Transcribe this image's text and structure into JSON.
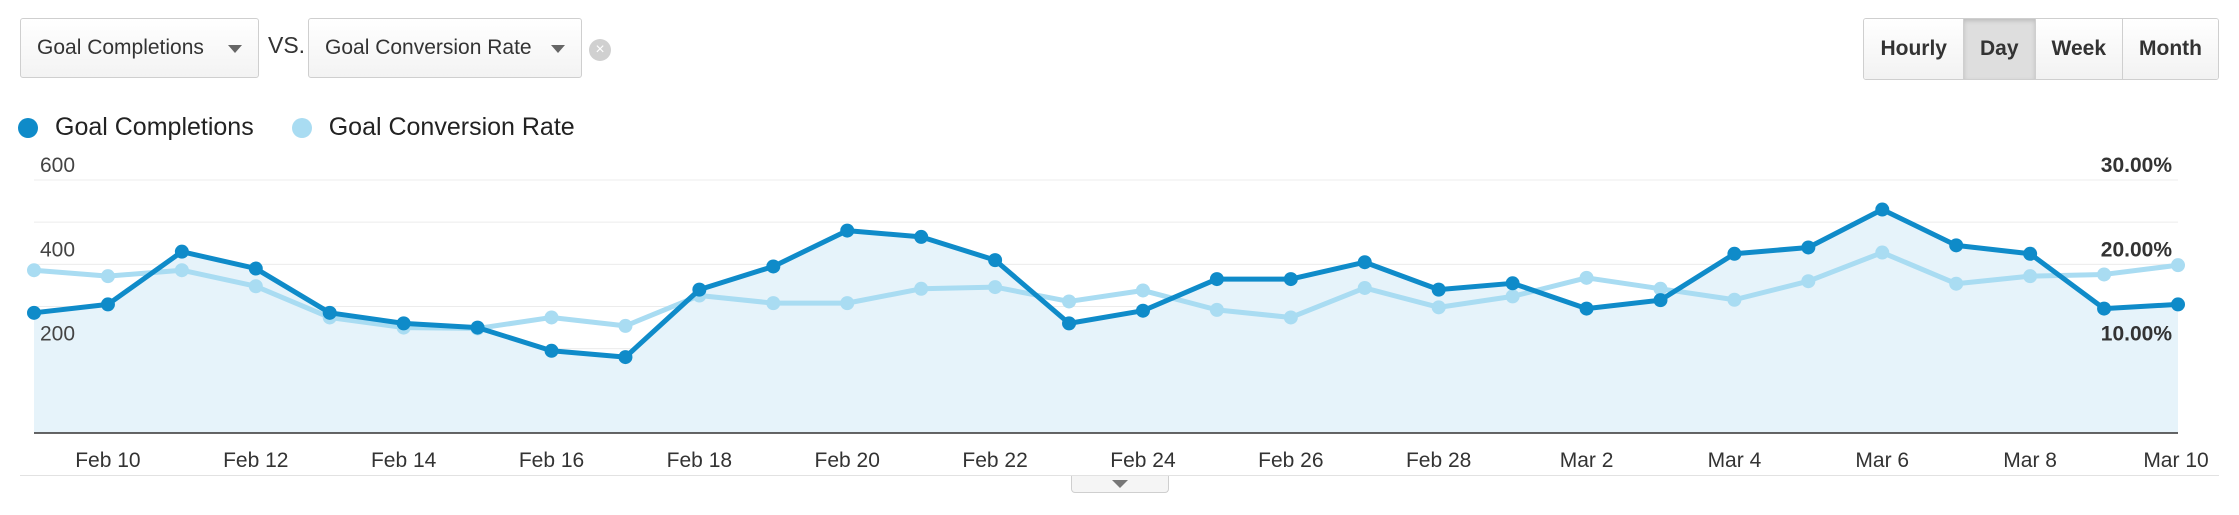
{
  "controls": {
    "primary_metric": "Goal Completions",
    "vs_label": "VS.",
    "secondary_metric": "Goal Conversion Rate",
    "remove_icon": "close-circle-icon",
    "periods": [
      "Hourly",
      "Day",
      "Week",
      "Month"
    ],
    "active_period": "Day"
  },
  "colors": {
    "primary": "#0f8bc9",
    "secondary": "#a9dcf2",
    "area": "#e6f3fa"
  },
  "chart_data": {
    "type": "line",
    "x": [
      "Feb 9",
      "Feb 10",
      "Feb 11",
      "Feb 12",
      "Feb 13",
      "Feb 14",
      "Feb 15",
      "Feb 16",
      "Feb 17",
      "Feb 18",
      "Feb 19",
      "Feb 20",
      "Feb 21",
      "Feb 22",
      "Feb 23",
      "Feb 24",
      "Feb 25",
      "Feb 26",
      "Feb 27",
      "Feb 28",
      "Mar 1",
      "Mar 2",
      "Mar 3",
      "Mar 4",
      "Mar 5",
      "Mar 6",
      "Mar 7",
      "Mar 8",
      "Mar 9",
      "Mar 10"
    ],
    "x_tick_labels": [
      "Feb 10",
      "Feb 12",
      "Feb 14",
      "Feb 16",
      "Feb 18",
      "Feb 20",
      "Feb 22",
      "Feb 24",
      "Feb 26",
      "Feb 28",
      "Mar 2",
      "Mar 4",
      "Mar 6",
      "Mar 8",
      "Mar 10"
    ],
    "series": [
      {
        "name": "Goal Completions",
        "axis": "left",
        "values": [
          285,
          305,
          430,
          390,
          285,
          260,
          250,
          195,
          180,
          340,
          395,
          480,
          465,
          410,
          260,
          290,
          365,
          365,
          405,
          340,
          355,
          295,
          315,
          425,
          440,
          530,
          445,
          425,
          295,
          305
        ]
      },
      {
        "name": "Goal Conversion Rate",
        "axis": "right",
        "values": [
          19.3,
          18.6,
          19.3,
          17.4,
          13.7,
          12.5,
          12.4,
          13.7,
          12.7,
          16.3,
          15.4,
          15.4,
          17.1,
          17.3,
          15.6,
          16.9,
          14.6,
          13.7,
          17.2,
          14.9,
          16.2,
          18.4,
          17.1,
          15.8,
          18.0,
          21.4,
          17.7,
          18.6,
          18.8,
          19.9
        ]
      }
    ],
    "y_left": {
      "ylim": [
        0,
        600
      ],
      "ticks": [
        200,
        400,
        600
      ],
      "tick_labels": [
        "200",
        "400",
        "600"
      ]
    },
    "y_right": {
      "ylim": [
        0,
        30
      ],
      "ticks": [
        10,
        20,
        30
      ],
      "tick_labels": [
        "10.00%",
        "20.00%",
        "30.00%"
      ]
    },
    "grid": true,
    "legend_placement": "top-left"
  }
}
